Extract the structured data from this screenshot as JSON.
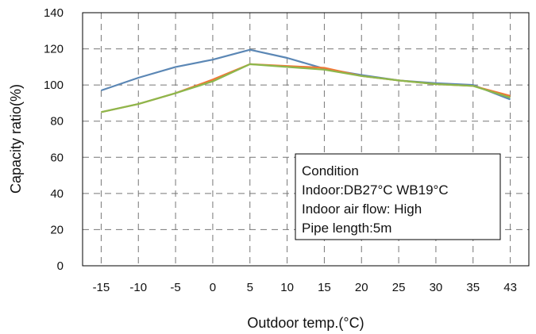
{
  "chart_data": {
    "type": "line",
    "title": "",
    "xlabel": "Outdoor temp.(°C)",
    "ylabel": "Capacity ratio(%)",
    "x": [
      -15,
      -10,
      -5,
      0,
      5,
      10,
      15,
      20,
      25,
      30,
      35,
      43
    ],
    "x_tick_labels": [
      "-15",
      "-10",
      "-5",
      "0",
      "5",
      "10",
      "15",
      "20",
      "25",
      "30",
      "35",
      "43"
    ],
    "y_ticks": [
      0,
      20,
      40,
      60,
      80,
      100,
      120,
      140
    ],
    "ylim": [
      0,
      140
    ],
    "grid": "dashed",
    "legend": "none",
    "series": [
      {
        "color": "#5b87b5",
        "values": [
          97,
          104,
          110,
          114,
          119.5,
          115,
          109,
          105.5,
          102.5,
          101,
          100,
          92
        ]
      },
      {
        "color": "#f07837",
        "values": [
          85,
          89.5,
          95.5,
          103,
          111.5,
          110.5,
          109.5,
          105,
          102.5,
          100.5,
          99.5,
          94
        ]
      },
      {
        "color": "#8cb84c",
        "values": [
          85,
          89.5,
          95.5,
          102,
          111.5,
          110,
          108.5,
          105,
          102.5,
          100.5,
          99.5,
          93
        ]
      }
    ],
    "annotation": {
      "lines": [
        "Condition",
        "Indoor:DB27°C WB19°C",
        "Indoor air flow: High",
        "Pipe length:5m"
      ]
    }
  }
}
